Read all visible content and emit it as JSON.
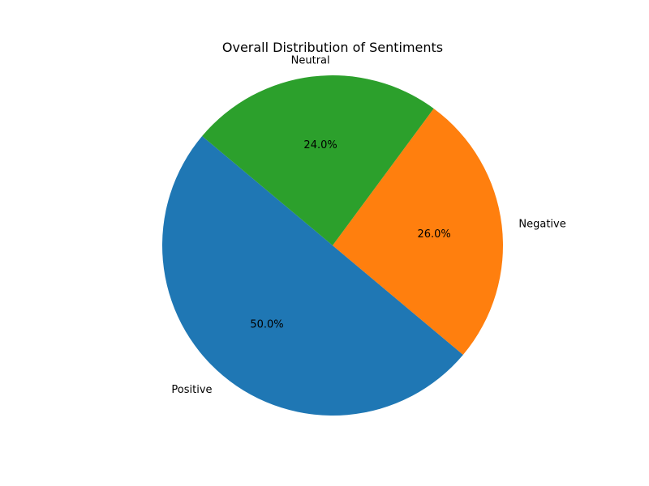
{
  "chart_data": {
    "type": "pie",
    "title": "Overall Distribution of Sentiments",
    "slices": [
      {
        "label": "Positive",
        "value": 50.0,
        "pct_label": "50.0%",
        "color": "#1f77b4"
      },
      {
        "label": "Negative",
        "value": 26.0,
        "pct_label": "26.0%",
        "color": "#ff7f0e"
      },
      {
        "label": "Neutral",
        "value": 24.0,
        "pct_label": "24.0%",
        "color": "#2ca02c"
      }
    ],
    "start_angle_deg": 140,
    "direction": "counterclockwise"
  }
}
